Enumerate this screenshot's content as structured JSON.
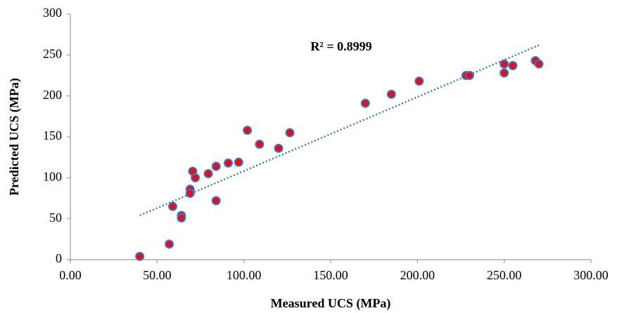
{
  "chart_data": {
    "type": "scatter",
    "x_label": "Measured UCS (MPa)",
    "y_label": "Predicted UCS (MPa)",
    "annotation": "R² = 0.8999",
    "x": [
      40,
      57,
      59,
      64,
      64,
      69,
      69,
      70.5,
      72,
      79.5,
      84,
      84,
      91,
      97,
      102,
      109,
      120,
      126.5,
      170,
      185,
      201,
      228,
      230,
      250,
      250,
      255,
      268,
      270
    ],
    "series": [
      {
        "color": "#e0101a",
        "edge_color": "#4472c4",
        "values": [
          4,
          19,
          65,
          54,
          51,
          86,
          81,
          108,
          100,
          105,
          114,
          72,
          118,
          119,
          158,
          141,
          136,
          155,
          191,
          202,
          218,
          225,
          225,
          239,
          228,
          237,
          243,
          239
        ]
      }
    ],
    "trendline": {
      "color": "#3a78c2",
      "x": [
        40,
        270
      ],
      "y": [
        54,
        262
      ]
    },
    "xlim": [
      0,
      300
    ],
    "ylim": [
      0,
      300
    ],
    "xticks": [
      {
        "value": 0,
        "label": "0.00"
      },
      {
        "value": 50,
        "label": "50.00"
      },
      {
        "value": 100,
        "label": "100.00"
      },
      {
        "value": 150,
        "label": "150.00"
      },
      {
        "value": 200,
        "label": "200.00"
      },
      {
        "value": 250,
        "label": "250.00"
      },
      {
        "value": 300,
        "label": "300.00"
      }
    ],
    "yticks": [
      0,
      50,
      100,
      150,
      200,
      250,
      300
    ]
  }
}
